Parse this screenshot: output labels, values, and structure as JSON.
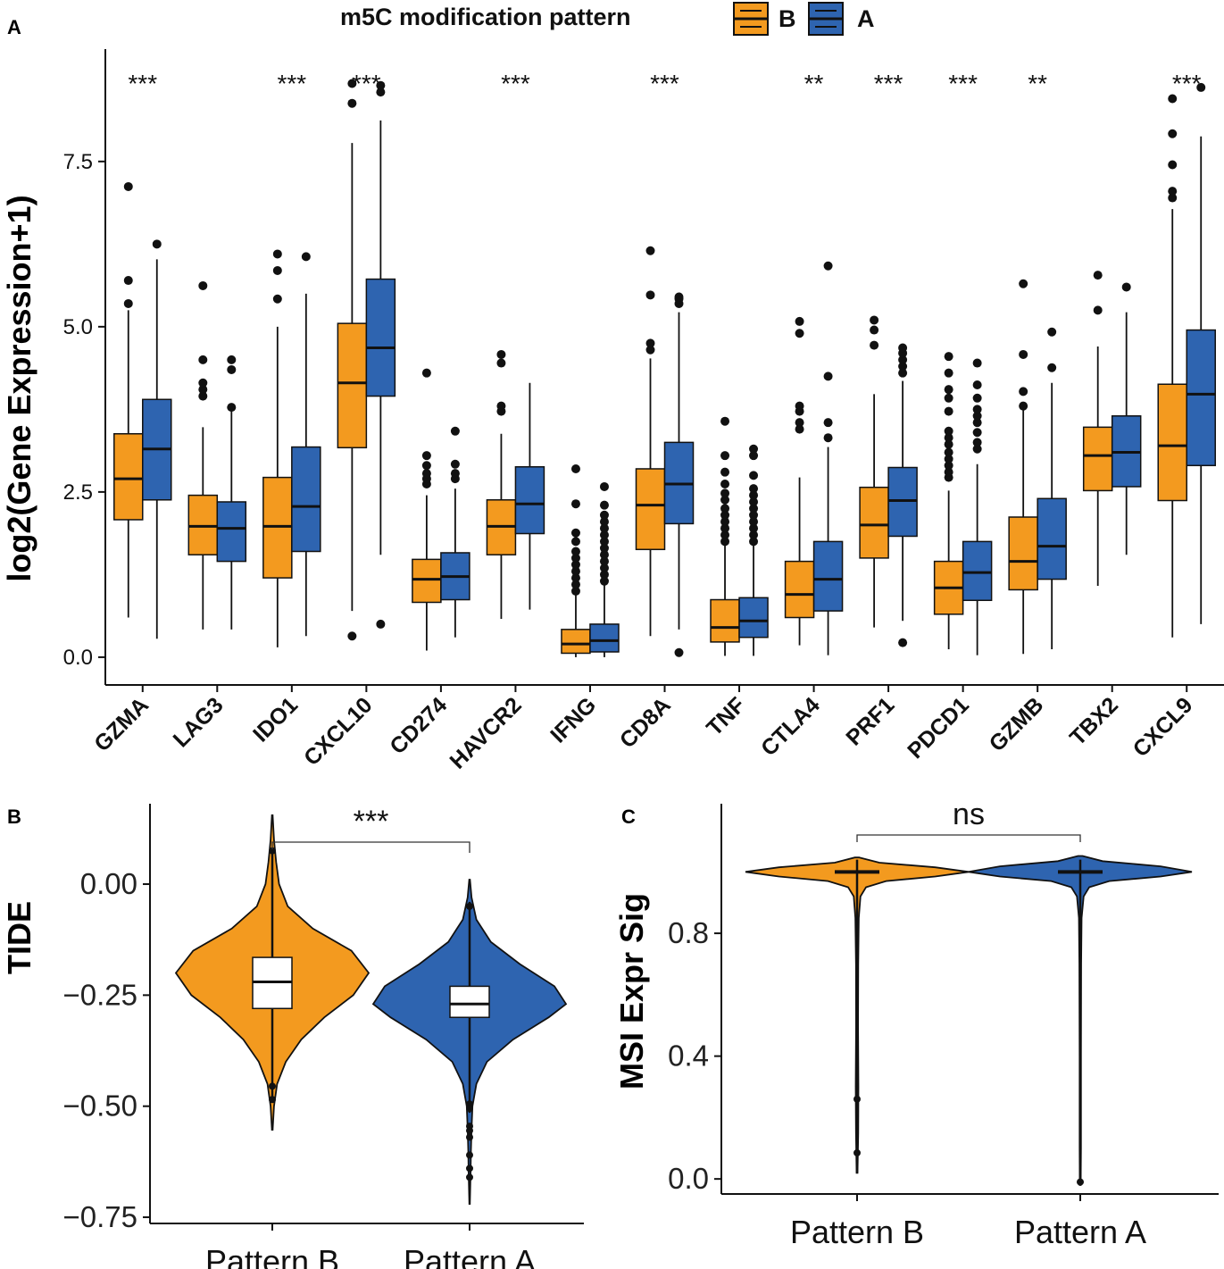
{
  "colors": {
    "B": "#F39A1F",
    "A": "#2E64B0",
    "outline": "#111111"
  },
  "legend": {
    "title": "m5C modification pattern",
    "entries": [
      {
        "key": "B",
        "label": "B"
      },
      {
        "key": "A",
        "label": "A"
      }
    ]
  },
  "chart_data": [
    {
      "panel": "A",
      "type": "box",
      "ylabel": "log2(Gene Expression+1)",
      "ylim": [
        -0.42,
        9.2
      ],
      "yticks": [
        0.0,
        2.5,
        5.0,
        7.5
      ],
      "ytick_labels": [
        "0.0",
        "2.5",
        "5.0",
        "7.5"
      ],
      "groups": [
        "B",
        "A"
      ],
      "genes": [
        {
          "name": "GZMA",
          "sig": "***",
          "B": {
            "min": 0.6,
            "q1": 2.08,
            "median": 2.7,
            "q3": 3.38,
            "max": 5.25,
            "outliers": [
              5.35,
              5.7,
              7.12
            ]
          },
          "A": {
            "min": 0.28,
            "q1": 2.38,
            "median": 3.15,
            "q3": 3.9,
            "max": 6.02,
            "outliers": [
              6.25
            ]
          }
        },
        {
          "name": "LAG3",
          "sig": "",
          "B": {
            "min": 0.42,
            "q1": 1.55,
            "median": 1.98,
            "q3": 2.45,
            "max": 3.48,
            "outliers": [
              3.95,
              4.05,
              4.15,
              4.5,
              5.62
            ]
          },
          "A": {
            "min": 0.42,
            "q1": 1.45,
            "median": 1.95,
            "q3": 2.35,
            "max": 3.75,
            "outliers": [
              3.78,
              4.35,
              4.5
            ]
          }
        },
        {
          "name": "IDO1",
          "sig": "***",
          "B": {
            "min": 0.15,
            "q1": 1.2,
            "median": 1.98,
            "q3": 2.72,
            "max": 5.0,
            "outliers": [
              5.42,
              5.85,
              6.1
            ]
          },
          "A": {
            "min": 0.32,
            "q1": 1.6,
            "median": 2.28,
            "q3": 3.18,
            "max": 5.5,
            "outliers": [
              6.06
            ]
          }
        },
        {
          "name": "CXCL10",
          "sig": "***",
          "B": {
            "min": 0.7,
            "q1": 3.17,
            "median": 4.15,
            "q3": 5.05,
            "max": 7.78,
            "outliers": [
              0.32,
              8.38,
              8.68
            ]
          },
          "A": {
            "min": 1.55,
            "q1": 3.95,
            "median": 4.68,
            "q3": 5.72,
            "max": 8.12,
            "outliers": [
              0.5,
              8.55,
              8.65
            ]
          }
        },
        {
          "name": "CD274",
          "sig": "",
          "B": {
            "min": 0.1,
            "q1": 0.83,
            "median": 1.18,
            "q3": 1.48,
            "max": 2.45,
            "outliers": [
              2.62,
              2.7,
              2.78,
              2.9,
              3.05,
              4.3
            ]
          },
          "A": {
            "min": 0.3,
            "q1": 0.87,
            "median": 1.22,
            "q3": 1.58,
            "max": 2.55,
            "outliers": [
              2.7,
              2.78,
              2.92,
              3.42
            ]
          }
        },
        {
          "name": "HAVCR2",
          "sig": "***",
          "B": {
            "min": 0.58,
            "q1": 1.55,
            "median": 1.98,
            "q3": 2.38,
            "max": 3.38,
            "outliers": [
              3.72,
              3.8,
              4.45,
              4.58
            ]
          },
          "A": {
            "min": 0.72,
            "q1": 1.87,
            "median": 2.32,
            "q3": 2.88,
            "max": 4.15,
            "outliers": []
          }
        },
        {
          "name": "IFNG",
          "sig": "",
          "B": {
            "min": 0.0,
            "q1": 0.06,
            "median": 0.2,
            "q3": 0.42,
            "max": 0.95,
            "outliers": [
              1.0,
              1.1,
              1.2,
              1.3,
              1.4,
              1.5,
              1.6,
              1.75,
              1.88,
              2.32,
              2.85
            ]
          },
          "A": {
            "min": 0.0,
            "q1": 0.08,
            "median": 0.25,
            "q3": 0.5,
            "max": 1.1,
            "outliers": [
              1.15,
              1.25,
              1.35,
              1.45,
              1.55,
              1.65,
              1.75,
              1.85,
              1.95,
              2.05,
              2.15,
              2.3,
              2.58
            ]
          }
        },
        {
          "name": "CD8A",
          "sig": "***",
          "B": {
            "min": 0.32,
            "q1": 1.63,
            "median": 2.3,
            "q3": 2.85,
            "max": 4.52,
            "outliers": [
              4.65,
              4.75,
              5.48,
              6.15
            ]
          },
          "A": {
            "min": 0.42,
            "q1": 2.02,
            "median": 2.62,
            "q3": 3.25,
            "max": 5.22,
            "outliers": [
              0.07,
              5.35,
              5.42,
              5.45
            ]
          }
        },
        {
          "name": "TNF",
          "sig": "",
          "B": {
            "min": 0.02,
            "q1": 0.23,
            "median": 0.45,
            "q3": 0.87,
            "max": 1.7,
            "outliers": [
              1.75,
              1.85,
              1.95,
              2.05,
              2.15,
              2.25,
              2.38,
              2.48,
              2.62,
              2.8,
              3.05,
              3.57
            ]
          },
          "A": {
            "min": 0.02,
            "q1": 0.3,
            "median": 0.55,
            "q3": 0.9,
            "max": 1.7,
            "outliers": [
              1.75,
              1.85,
              1.95,
              2.05,
              2.15,
              2.25,
              2.35,
              2.45,
              2.55,
              2.75,
              3.05,
              3.15
            ]
          }
        },
        {
          "name": "CTLA4",
          "sig": "**",
          "B": {
            "min": 0.18,
            "q1": 0.6,
            "median": 0.95,
            "q3": 1.45,
            "max": 2.72,
            "outliers": [
              3.45,
              3.55,
              3.72,
              3.8,
              4.9,
              5.08
            ]
          },
          "A": {
            "min": 0.03,
            "q1": 0.7,
            "median": 1.18,
            "q3": 1.75,
            "max": 3.18,
            "outliers": [
              3.32,
              3.55,
              4.25,
              5.92
            ]
          }
        },
        {
          "name": "PRF1",
          "sig": "***",
          "B": {
            "min": 0.45,
            "q1": 1.5,
            "median": 2.0,
            "q3": 2.57,
            "max": 3.98,
            "outliers": [
              4.72,
              4.95,
              5.1
            ]
          },
          "A": {
            "min": 0.55,
            "q1": 1.83,
            "median": 2.37,
            "q3": 2.87,
            "max": 4.18,
            "outliers": [
              0.22,
              4.3,
              4.4,
              4.5,
              4.6,
              4.68
            ]
          }
        },
        {
          "name": "PDCD1",
          "sig": "***",
          "B": {
            "min": 0.12,
            "q1": 0.65,
            "median": 1.05,
            "q3": 1.45,
            "max": 2.52,
            "outliers": [
              2.72,
              2.8,
              2.9,
              3.0,
              3.1,
              3.22,
              3.32,
              3.42,
              3.72,
              3.92,
              4.05,
              4.3,
              4.55
            ]
          },
          "A": {
            "min": 0.03,
            "q1": 0.86,
            "median": 1.28,
            "q3": 1.75,
            "max": 2.92,
            "outliers": [
              3.15,
              3.25,
              3.4,
              3.55,
              3.65,
              3.75,
              3.92,
              4.12,
              4.45
            ]
          }
        },
        {
          "name": "GZMB",
          "sig": "**",
          "B": {
            "min": 0.05,
            "q1": 1.02,
            "median": 1.45,
            "q3": 2.12,
            "max": 3.75,
            "outliers": [
              3.8,
              4.02,
              4.58,
              5.65
            ]
          },
          "A": {
            "min": 0.12,
            "q1": 1.18,
            "median": 1.68,
            "q3": 2.4,
            "max": 4.15,
            "outliers": [
              4.38,
              4.92
            ]
          }
        },
        {
          "name": "TBX2",
          "sig": "",
          "B": {
            "min": 1.08,
            "q1": 2.52,
            "median": 3.05,
            "q3": 3.48,
            "max": 4.7,
            "outliers": [
              5.25,
              5.78
            ]
          },
          "A": {
            "min": 1.55,
            "q1": 2.58,
            "median": 3.1,
            "q3": 3.65,
            "max": 5.22,
            "outliers": [
              5.6
            ]
          }
        },
        {
          "name": "CXCL9",
          "sig": "***",
          "B": {
            "min": 0.3,
            "q1": 2.37,
            "median": 3.2,
            "q3": 4.13,
            "max": 6.78,
            "outliers": [
              6.95,
              7.05,
              7.45,
              7.92,
              8.45
            ]
          },
          "A": {
            "min": 0.5,
            "q1": 2.9,
            "median": 3.98,
            "q3": 4.95,
            "max": 7.88,
            "outliers": [
              8.62
            ]
          }
        }
      ]
    },
    {
      "panel": "B",
      "type": "violin",
      "ylabel": "TIDE",
      "ylim": [
        -0.764,
        0.181
      ],
      "yticks": [
        0.0,
        -0.25,
        -0.5,
        -0.75
      ],
      "ytick_labels": [
        "0.00",
        "−0.25",
        "−0.50",
        "−0.75"
      ],
      "categories": [
        "Pattern B",
        "Pattern A"
      ],
      "significance": "***",
      "groups": [
        {
          "key": "B",
          "min": -0.48,
          "q1": -0.28,
          "median": -0.22,
          "q3": -0.165,
          "max": 0.08,
          "outliers": [
            0.075,
            -0.455,
            -0.485
          ],
          "violin_top": 0.155,
          "violin_bottom": -0.553,
          "density": [
            [
              0.155,
              0.004
            ],
            [
              0.1,
              0.018
            ],
            [
              0.05,
              0.04
            ],
            [
              0.0,
              0.07
            ],
            [
              -0.05,
              0.16
            ],
            [
              -0.1,
              0.42
            ],
            [
              -0.15,
              0.82
            ],
            [
              -0.2,
              1.0
            ],
            [
              -0.25,
              0.84
            ],
            [
              -0.3,
              0.54
            ],
            [
              -0.35,
              0.3
            ],
            [
              -0.4,
              0.14
            ],
            [
              -0.45,
              0.05
            ],
            [
              -0.5,
              0.018
            ],
            [
              -0.553,
              0.004
            ]
          ]
        },
        {
          "key": "A",
          "min": -0.515,
          "q1": -0.3,
          "median": -0.27,
          "q3": -0.23,
          "max": -0.04,
          "outliers": [
            -0.05,
            -0.495,
            -0.505,
            -0.545,
            -0.555,
            -0.57,
            -0.61,
            -0.64,
            -0.66
          ],
          "violin_top": 0.01,
          "violin_bottom": -0.72,
          "density": [
            [
              0.01,
              0.004
            ],
            [
              -0.03,
              0.02
            ],
            [
              -0.08,
              0.07
            ],
            [
              -0.13,
              0.22
            ],
            [
              -0.18,
              0.52
            ],
            [
              -0.23,
              0.88
            ],
            [
              -0.27,
              1.0
            ],
            [
              -0.3,
              0.82
            ],
            [
              -0.35,
              0.45
            ],
            [
              -0.4,
              0.18
            ],
            [
              -0.45,
              0.07
            ],
            [
              -0.5,
              0.03
            ],
            [
              -0.55,
              0.02
            ],
            [
              -0.6,
              0.014
            ],
            [
              -0.65,
              0.01
            ],
            [
              -0.72,
              0.003
            ]
          ]
        }
      ]
    },
    {
      "panel": "C",
      "type": "violin",
      "ylabel": "MSI Expr Sig",
      "ylim": [
        -0.049,
        1.222
      ],
      "yticks": [
        0.0,
        0.4,
        0.8
      ],
      "ytick_labels": [
        "0.0",
        "0.4",
        "0.8"
      ],
      "categories": [
        "Pattern B",
        "Pattern A"
      ],
      "significance": "ns",
      "groups": [
        {
          "key": "B",
          "median": 1.0,
          "q1": 0.997,
          "q3": 1.003,
          "min": 0.02,
          "max": 1.04,
          "outliers": [
            0.26,
            0.085
          ],
          "violin_top": 1.047,
          "violin_bottom": 0.02,
          "density": [
            [
              1.047,
              0.02
            ],
            [
              1.03,
              0.2
            ],
            [
              1.015,
              0.7
            ],
            [
              1.0,
              1.0
            ],
            [
              0.985,
              0.7
            ],
            [
              0.97,
              0.26
            ],
            [
              0.95,
              0.08
            ],
            [
              0.92,
              0.03
            ],
            [
              0.85,
              0.015
            ],
            [
              0.7,
              0.01
            ],
            [
              0.5,
              0.009
            ],
            [
              0.3,
              0.012
            ],
            [
              0.15,
              0.01
            ],
            [
              0.02,
              0.004
            ]
          ]
        },
        {
          "key": "A",
          "median": 1.0,
          "q1": 0.997,
          "q3": 1.003,
          "min": 0.0,
          "max": 1.04,
          "outliers": [
            -0.01
          ],
          "violin_top": 1.052,
          "violin_bottom": -0.02,
          "density": [
            [
              1.052,
              0.02
            ],
            [
              1.035,
              0.2
            ],
            [
              1.018,
              0.72
            ],
            [
              1.0,
              1.0
            ],
            [
              0.985,
              0.72
            ],
            [
              0.97,
              0.26
            ],
            [
              0.95,
              0.08
            ],
            [
              0.92,
              0.03
            ],
            [
              0.85,
              0.012
            ],
            [
              0.7,
              0.008
            ],
            [
              0.4,
              0.006
            ],
            [
              0.1,
              0.006
            ],
            [
              -0.02,
              0.004
            ]
          ]
        }
      ]
    }
  ],
  "panel_labels": {
    "a": "A",
    "b": "B",
    "c": "C"
  }
}
